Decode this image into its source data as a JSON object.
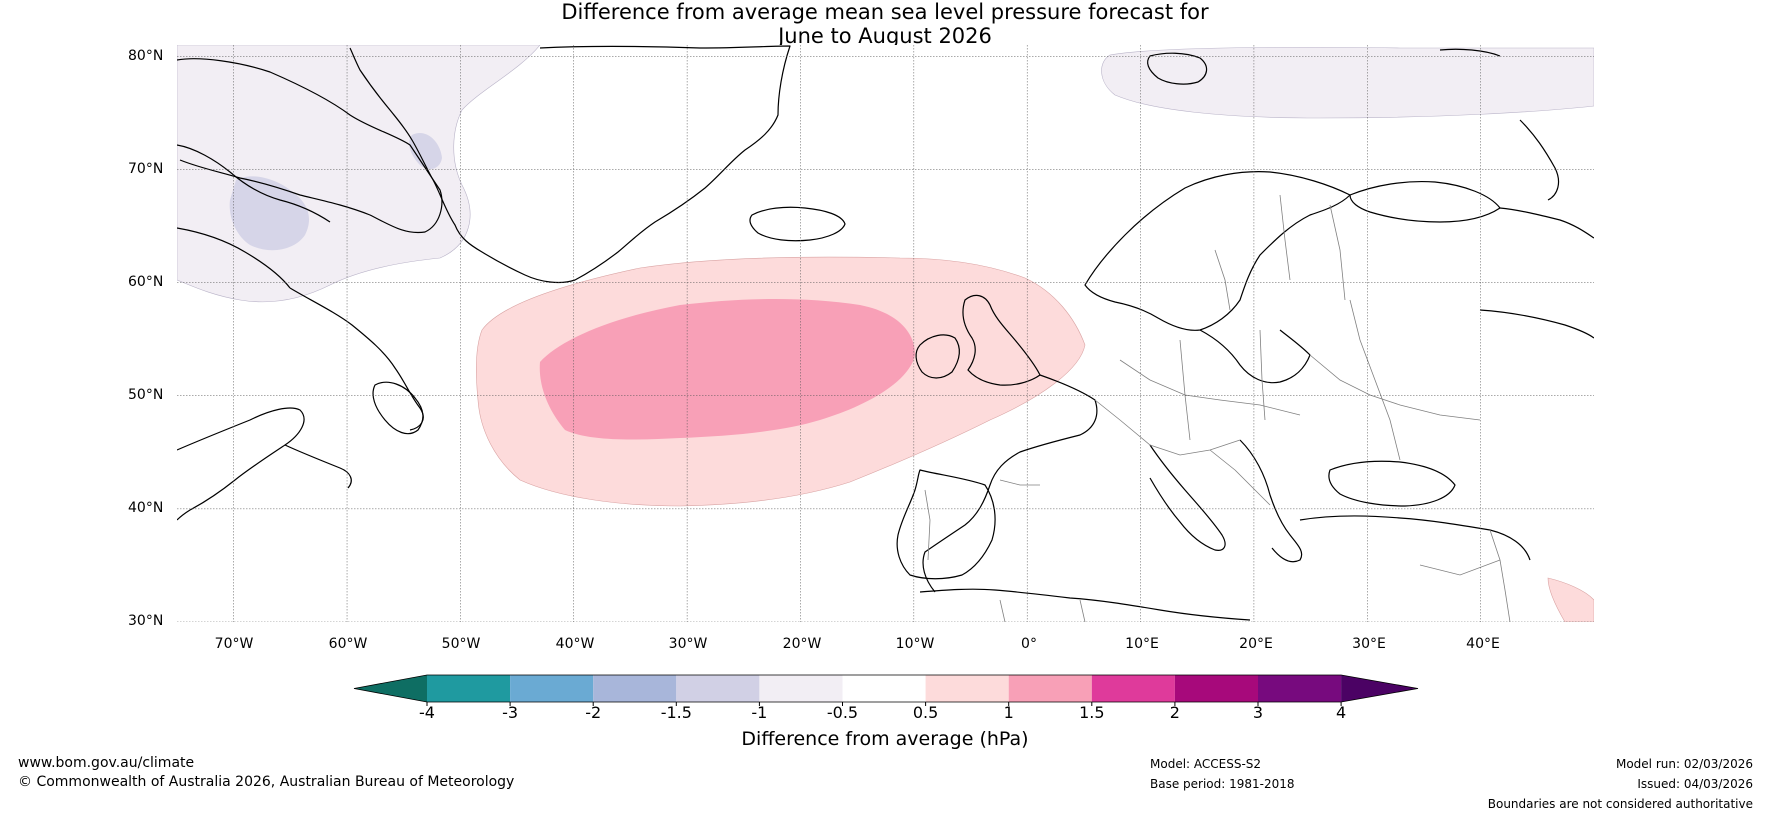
{
  "title": {
    "line1": "Difference from average mean sea level pressure forecast for",
    "line2": "June to August 2026"
  },
  "axes": {
    "lat_labels": [
      "80°N",
      "70°N",
      "60°N",
      "50°N",
      "40°N",
      "30°N"
    ],
    "lon_labels": [
      "70°W",
      "60°W",
      "50°W",
      "40°W",
      "30°W",
      "20°W",
      "10°W",
      "0°",
      "10°E",
      "20°E",
      "30°E",
      "40°E"
    ],
    "lat_range": [
      30,
      81
    ],
    "lon_range": [
      -75,
      50
    ]
  },
  "colorbar": {
    "title": "Difference from average (hPa)",
    "tick_labels": [
      "-4",
      "-3",
      "-2",
      "-1.5",
      "-1",
      "-0.5",
      "0.5",
      "1",
      "1.5",
      "2",
      "3",
      "4"
    ],
    "colors": [
      "#0e6e63",
      "#1f9aa0",
      "#6aaad3",
      "#a8b6da",
      "#d1d0e5",
      "#f2eef4",
      "#ffffff",
      "#fddbdb",
      "#f8a0b7",
      "#df3a9b",
      "#a7097b",
      "#770a7e",
      "#4b0264"
    ]
  },
  "regions": [
    {
      "name": "positive-anomaly-outer",
      "range": "0.5 to 1 hPa",
      "color": "#fddbdb"
    },
    {
      "name": "positive-anomaly-core",
      "range": "1 to 1.5 hPa",
      "color": "#f8a0b7"
    },
    {
      "name": "negative-anomaly-labrador",
      "range": "-1 to -0.5 hPa",
      "color": "#f2eef4"
    },
    {
      "name": "negative-anomaly-barents",
      "range": "-1 to -0.5 hPa",
      "color": "#f2eef4"
    },
    {
      "name": "negative-anomaly-baffin-core",
      "range": "-1.5 to -1 hPa",
      "color": "#d1d0e5"
    }
  ],
  "footer": {
    "website": "www.bom.gov.au/climate",
    "copyright": "© Commonwealth of Australia 2026, Australian Bureau of Meteorology",
    "model": "Model: ACCESS-S2",
    "base_period": "Base period: 1981-2018",
    "model_run": "Model run: 02/03/2026",
    "issued": "Issued: 04/03/2026",
    "disclaimer": "Boundaries are not considered authoritative"
  }
}
